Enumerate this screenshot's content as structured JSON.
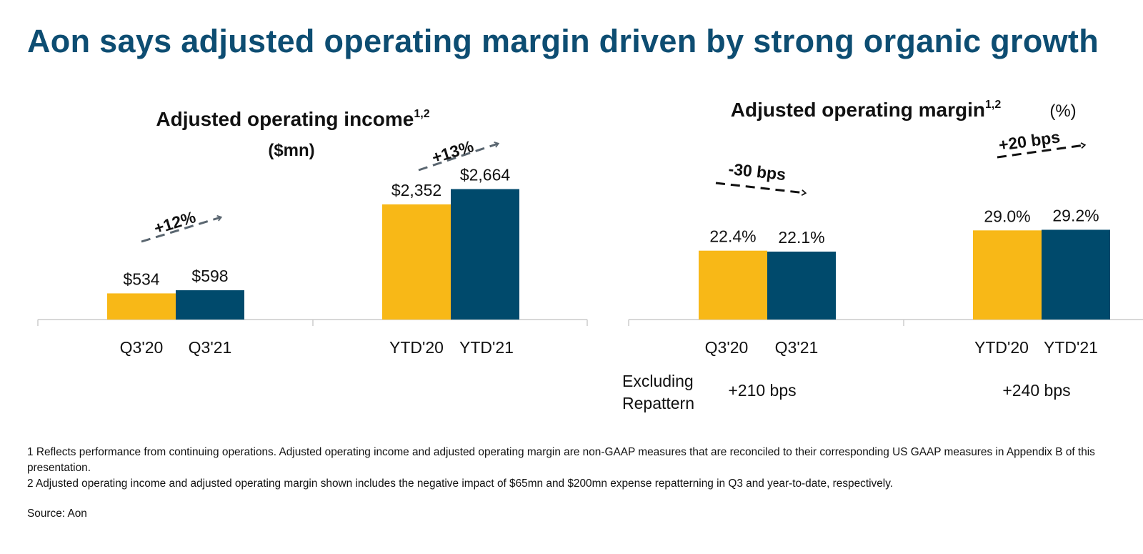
{
  "title": "Aon says adjusted operating margin driven by strong organic growth",
  "colors": {
    "title": "#0d4d72",
    "prior": "#f8b817",
    "current": "#004a6c",
    "axis": "#cccccc",
    "arrow_gray": "#5a6670",
    "arrow_black": "#111111"
  },
  "chart_data": [
    {
      "type": "bar",
      "title": "Adjusted operating income",
      "title_superscript": "1,2",
      "unit": "($mn)",
      "groups": [
        {
          "categories": [
            "Q3'20",
            "Q3'21"
          ],
          "values": [
            534,
            598
          ],
          "labels": [
            "$534",
            "$598"
          ],
          "change": "+12%"
        },
        {
          "categories": [
            "YTD'20",
            "YTD'21"
          ],
          "values": [
            2352,
            2664
          ],
          "labels": [
            "$2,352",
            "$2,664"
          ],
          "change": "+13%"
        }
      ]
    },
    {
      "type": "bar",
      "title": "Adjusted operating margin",
      "title_superscript": "1,2",
      "unit": "(%)",
      "groups": [
        {
          "categories": [
            "Q3'20",
            "Q3'21"
          ],
          "values": [
            22.4,
            22.1
          ],
          "labels": [
            "22.4%",
            "22.1%"
          ],
          "change": "-30 bps",
          "excluding_repattern": "+210 bps"
        },
        {
          "categories": [
            "YTD'20",
            "YTD'21"
          ],
          "values": [
            29.0,
            29.2
          ],
          "labels": [
            "29.0%",
            "29.2%"
          ],
          "change": "+20 bps",
          "excluding_repattern": "+240 bps"
        }
      ],
      "excluding_label": [
        "Excluding",
        "Repattern"
      ]
    }
  ],
  "footnotes": [
    "1 Reflects performance from continuing operations. Adjusted operating income and adjusted operating margin are non-GAAP measures that are reconciled to their corresponding US GAAP measures in Appendix B of this presentation.",
    "2 Adjusted operating income and adjusted operating margin shown includes the negative impact of $65mn and $200mn expense repatterning in Q3 and year-to-date, respectively."
  ],
  "source": "Source: Aon"
}
